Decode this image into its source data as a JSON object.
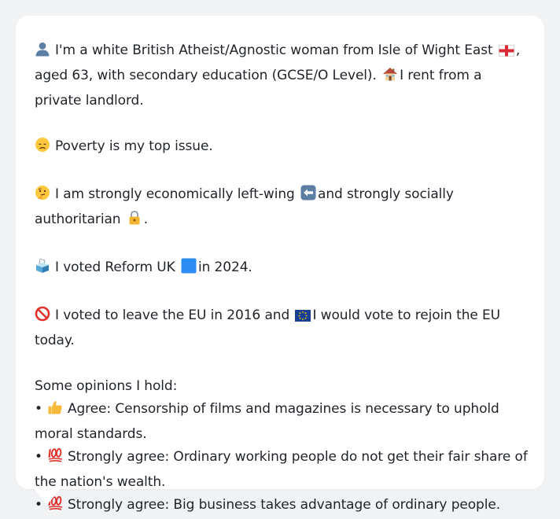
{
  "profile": {
    "intro": {
      "icon": "person-silhouette-icon",
      "text_1": "I'm a white British Atheist/Agnostic woman from Isle of Wight East",
      "flag_icon": "england-flag-icon",
      "text_2": ", aged 63, with secondary education (GCSE/O Level).",
      "house_icon": "house-icon",
      "text_3": "I rent from a private landlord."
    },
    "top_issue": {
      "icon": "sad-face-icon",
      "text": "Poverty is my top issue."
    },
    "ideology": {
      "icon": "thinking-face-icon",
      "text_1": "I am strongly economically left-wing",
      "left_arrow_icon": "left-arrow-icon",
      "text_2": "and strongly socially authoritarian",
      "lock_icon": "lock-icon",
      "text_3": "."
    },
    "vote_2024": {
      "icon": "ballot-box-icon",
      "text_1": "I voted Reform UK",
      "party_color_icon": "blue-square-icon",
      "text_2": "in 2024."
    },
    "eu": {
      "icon": "prohibited-icon",
      "text_1": "I voted to leave the EU in 2016 and",
      "eu_flag_icon": "eu-flag-icon",
      "text_2": "I would vote to rejoin the EU today."
    },
    "opinions": {
      "heading": "Some opinions I hold:",
      "bullet": "•",
      "items": [
        {
          "icon": "thumbs-up-icon",
          "text": "Agree: Censorship of films and magazines is necessary to uphold moral standards."
        },
        {
          "icon": "hundred-points-icon",
          "text": "Strongly agree: Ordinary working people do not get their fair share of the nation's wealth."
        },
        {
          "icon": "hundred-points-icon",
          "text": "Strongly agree: Big business takes advantage of ordinary people."
        }
      ]
    }
  },
  "colors": {
    "page_background": "#f1f2f4",
    "bubble_background": "#ffffff",
    "text": "#1f2329",
    "reform_blue": "#2b8cf4",
    "hundred_red": "#e0312b",
    "thumbs_yellow": "#f6b93b"
  }
}
